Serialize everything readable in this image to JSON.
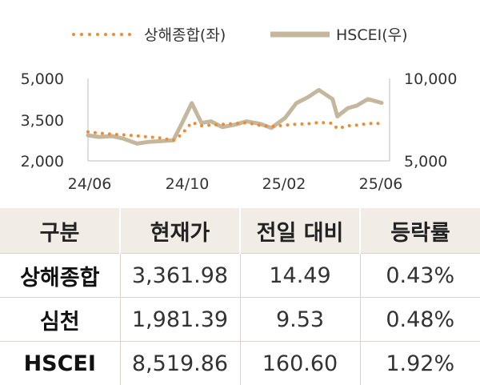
{
  "chart_data": {
    "type": "line",
    "title": "",
    "legend_position": "top",
    "x_ticks": [
      "24/06",
      "24/10",
      "25/02",
      "25/06"
    ],
    "y_left": {
      "ticks": [
        "5,000",
        "3,500",
        "2,000"
      ],
      "range": [
        2000,
        5000
      ]
    },
    "y_right": {
      "ticks": [
        "10,000",
        "5,000"
      ],
      "range": [
        5000,
        10000
      ]
    },
    "series": [
      {
        "name": "상해종합(좌)",
        "axis": "left",
        "style": "dotted",
        "color": "#f28b30",
        "points": [
          [
            "2024-06-01",
            3055
          ],
          [
            "2024-06-15",
            3010
          ],
          [
            "2024-07-01",
            2970
          ],
          [
            "2024-07-15",
            2950
          ],
          [
            "2024-08-01",
            2910
          ],
          [
            "2024-08-15",
            2870
          ],
          [
            "2024-09-01",
            2830
          ],
          [
            "2024-09-15",
            2740
          ],
          [
            "2024-09-25",
            2950
          ],
          [
            "2024-10-08",
            3400
          ],
          [
            "2024-10-20",
            3280
          ],
          [
            "2024-11-01",
            3300
          ],
          [
            "2024-11-15",
            3330
          ],
          [
            "2024-12-01",
            3360
          ],
          [
            "2024-12-15",
            3390
          ],
          [
            "2025-01-01",
            3290
          ],
          [
            "2025-01-15",
            3250
          ],
          [
            "2025-02-01",
            3300
          ],
          [
            "2025-02-15",
            3340
          ],
          [
            "2025-03-01",
            3350
          ],
          [
            "2025-03-15",
            3400
          ],
          [
            "2025-04-01",
            3370
          ],
          [
            "2025-04-07",
            3170
          ],
          [
            "2025-04-20",
            3280
          ],
          [
            "2025-05-01",
            3300
          ],
          [
            "2025-05-15",
            3360
          ],
          [
            "2025-06-01",
            3362
          ]
        ]
      },
      {
        "name": "HSCEI(우)",
        "axis": "right",
        "style": "solid",
        "color": "#c5b79d",
        "points": [
          [
            "2024-06-01",
            6550
          ],
          [
            "2024-06-15",
            6450
          ],
          [
            "2024-07-01",
            6500
          ],
          [
            "2024-07-15",
            6350
          ],
          [
            "2024-08-01",
            6050
          ],
          [
            "2024-08-15",
            6150
          ],
          [
            "2024-09-01",
            6200
          ],
          [
            "2024-09-15",
            6250
          ],
          [
            "2024-09-25",
            7200
          ],
          [
            "2024-10-08",
            8500
          ],
          [
            "2024-10-20",
            7300
          ],
          [
            "2024-11-01",
            7400
          ],
          [
            "2024-11-15",
            7050
          ],
          [
            "2024-12-01",
            7200
          ],
          [
            "2024-12-15",
            7400
          ],
          [
            "2025-01-01",
            7250
          ],
          [
            "2025-01-15",
            7000
          ],
          [
            "2025-02-01",
            7600
          ],
          [
            "2025-02-15",
            8500
          ],
          [
            "2025-03-01",
            8850
          ],
          [
            "2025-03-15",
            9300
          ],
          [
            "2025-04-01",
            8750
          ],
          [
            "2025-04-07",
            7700
          ],
          [
            "2025-04-20",
            8200
          ],
          [
            "2025-05-01",
            8350
          ],
          [
            "2025-05-15",
            8750
          ],
          [
            "2025-06-01",
            8520
          ]
        ]
      }
    ]
  },
  "table": {
    "headers": [
      "구분",
      "현재가",
      "전일 대비",
      "등락률"
    ],
    "rows": [
      [
        "상해종합",
        "3,361.98",
        "14.49",
        "0.43%"
      ],
      [
        "심천",
        "1,981.39",
        "9.53",
        "0.48%"
      ],
      [
        "HSCEI",
        "8,519.86",
        "160.60",
        "1.92%"
      ]
    ]
  }
}
